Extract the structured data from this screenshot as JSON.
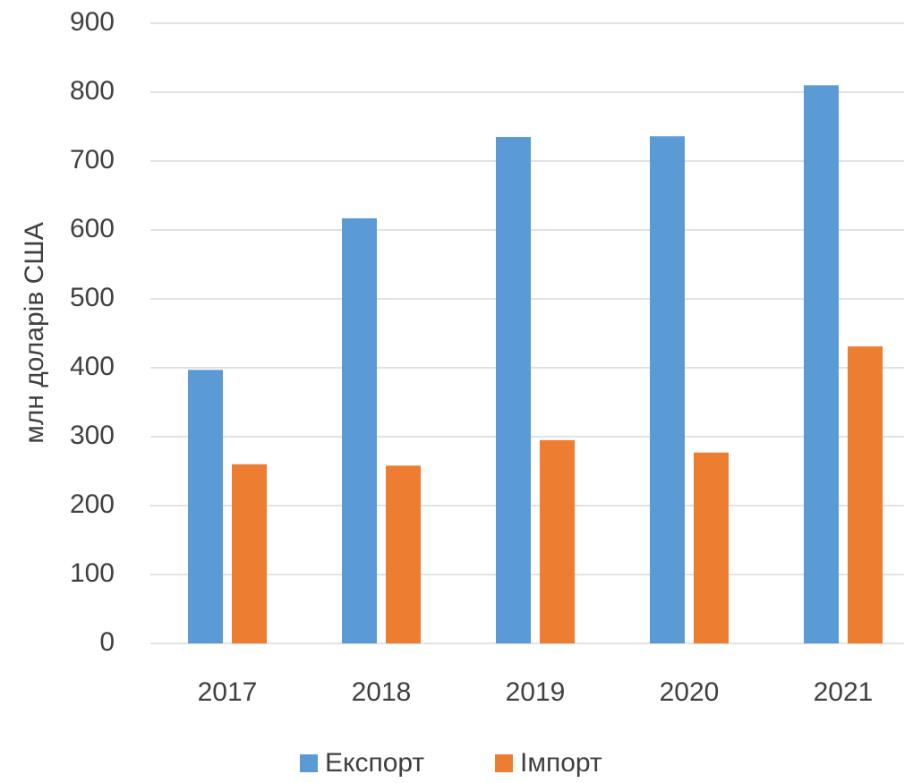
{
  "chart_data": {
    "type": "bar",
    "y_label": "млн доларів США",
    "categories": [
      "2017",
      "2018",
      "2019",
      "2020",
      "2021"
    ],
    "series": [
      {
        "name": "Експорт",
        "color": "#5b9bd5",
        "values": [
          397,
          617,
          735,
          736,
          810
        ]
      },
      {
        "name": "Імпорт",
        "color": "#ed7d31",
        "values": [
          260,
          258,
          295,
          277,
          431
        ]
      }
    ],
    "ylim": [
      0,
      900
    ],
    "yticks": [
      0,
      100,
      200,
      300,
      400,
      500,
      600,
      700,
      800,
      900
    ],
    "grid": true,
    "legend": "bottom"
  }
}
